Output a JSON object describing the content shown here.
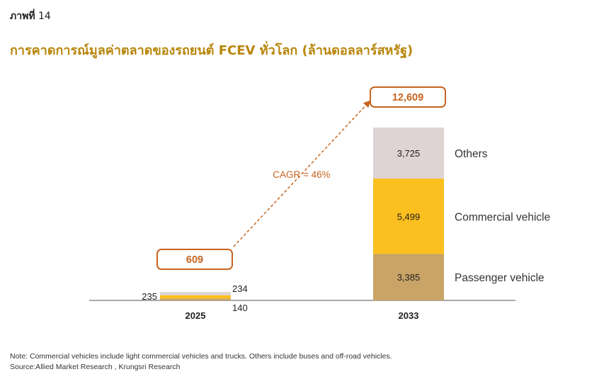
{
  "figure_label": {
    "prefix": "ภาพที่",
    "number": "14"
  },
  "title": "การคาดการณ์มูลค่าตลาดของรถยนต์ FCEV ทั่วโลก (ล้านดอลลาร์สหรัฐ)",
  "notes": [
    "Note: Commercial vehicles include light commercial vehicles and trucks. Others include buses and off-road vehicles.",
    "Source:Allied Market Research , Krungsri Research"
  ],
  "colors": {
    "passenger": "#c9a466",
    "commercial": "#fbbf1f",
    "others": "#ddd4d3",
    "accent": "#c8641f",
    "title": "#b8860b"
  },
  "chart_data": {
    "type": "bar",
    "stacked": true,
    "categories": [
      "2025",
      "2033"
    ],
    "series": [
      {
        "name": "Passenger vehicle",
        "values": [
          140,
          3385
        ],
        "labels": [
          "140",
          "3,385"
        ]
      },
      {
        "name": "Commercial vehicle",
        "values": [
          235,
          5499
        ],
        "labels": [
          "235",
          "5,499"
        ]
      },
      {
        "name": "Others",
        "values": [
          234,
          3725
        ],
        "labels": [
          "234",
          "3,725"
        ]
      }
    ],
    "totals": [
      609,
      12609
    ],
    "total_labels": [
      "609",
      "12,609"
    ],
    "annotation": "CAGR = 46%",
    "ylim": [
      0,
      12609
    ]
  }
}
